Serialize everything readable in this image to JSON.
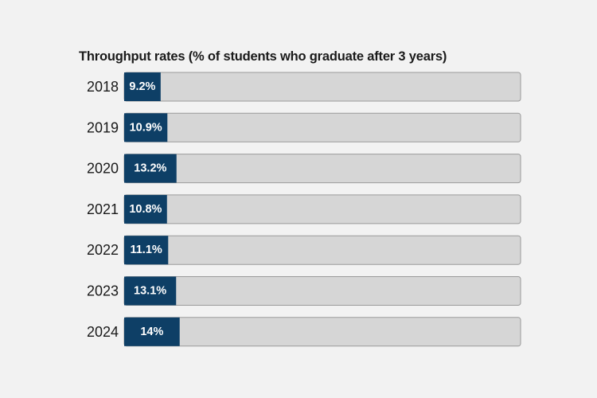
{
  "chart_data": {
    "type": "bar",
    "orientation": "horizontal",
    "title": "Throughput rates (% of students who graduate after 3 years)",
    "categories": [
      "2018",
      "2019",
      "2020",
      "2021",
      "2022",
      "2023",
      "2024"
    ],
    "values": [
      9.2,
      10.9,
      13.2,
      10.8,
      11.1,
      13.1,
      14
    ],
    "value_labels": [
      "9.2%",
      "10.9%",
      "13.2%",
      "10.8%",
      "11.1%",
      "13.1%",
      "14%"
    ],
    "xlim": [
      0,
      100
    ],
    "unit": "%",
    "grid": false,
    "legend": "none",
    "colors": {
      "bar_fill": "#0e3f66",
      "track_fill": "#d6d6d6",
      "track_stroke": "#9a9a9a",
      "background": "#f2f2f2"
    }
  }
}
